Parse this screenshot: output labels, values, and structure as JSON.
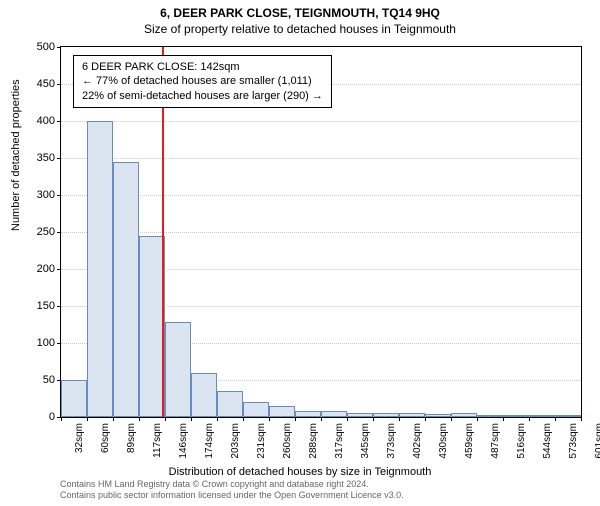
{
  "titles": {
    "main": "6, DEER PARK CLOSE, TEIGNMOUTH, TQ14 9HQ",
    "sub": "Size of property relative to detached houses in Teignmouth"
  },
  "chart": {
    "type": "histogram",
    "bar_fill": "#dbe5f1",
    "bar_stroke": "#6a8bc0",
    "background_color": "#ffffff",
    "grid_color": "#cccccc",
    "vline_color": "#e02020",
    "ylim": [
      0,
      500
    ],
    "ytick_step": 50,
    "y_ticks": [
      0,
      50,
      100,
      150,
      200,
      250,
      300,
      350,
      400,
      450,
      500
    ],
    "ylabel": "Number of detached properties",
    "xlabel": "Distribution of detached houses by size in Teignmouth",
    "x_tick_labels": [
      "32sqm",
      "60sqm",
      "89sqm",
      "117sqm",
      "146sqm",
      "174sqm",
      "203sqm",
      "231sqm",
      "260sqm",
      "288sqm",
      "317sqm",
      "345sqm",
      "373sqm",
      "402sqm",
      "430sqm",
      "459sqm",
      "487sqm",
      "516sqm",
      "544sqm",
      "573sqm",
      "601sqm"
    ],
    "bars": [
      50,
      400,
      345,
      245,
      128,
      60,
      35,
      20,
      15,
      8,
      8,
      6,
      5,
      5,
      4,
      5,
      2,
      2,
      1,
      1
    ],
    "marker_value": 142,
    "x_domain": [
      32,
      601
    ],
    "annotation": {
      "line1": "6 DEER PARK CLOSE: 142sqm",
      "line2": "← 77% of detached houses are smaller (1,011)",
      "line3": "22% of semi-detached houses are larger (290) →"
    }
  },
  "footer": {
    "line1": "Contains HM Land Registry data © Crown copyright and database right 2024.",
    "line2": "Contains public sector information licensed under the Open Government Licence v3.0."
  }
}
